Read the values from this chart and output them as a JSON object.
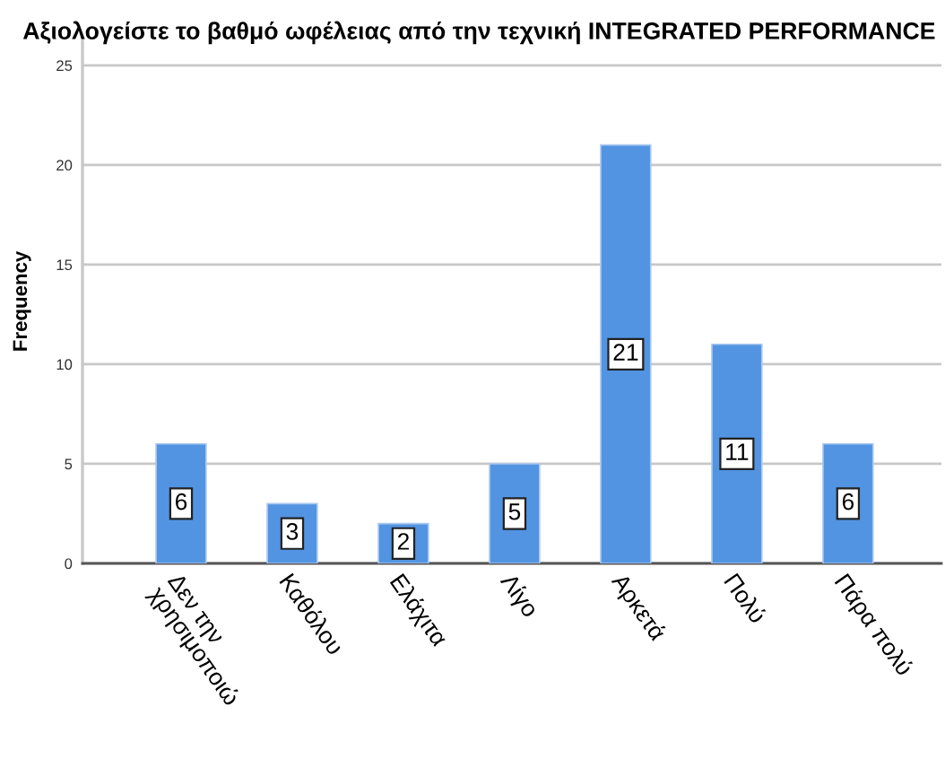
{
  "chart_data": {
    "type": "bar",
    "title": "Αξιολογείστε το βαθμό ωφέλειας από την τεχνική INTEGRATED PERFORMANCE",
    "ylabel": "Frequency",
    "categories": [
      "Δεν την\nχρησιμοποιώ",
      "Καθόλου",
      "Ελάχιτα",
      "Λίγο",
      "Αρκετά",
      "Πολύ",
      "Πάρα πολύ"
    ],
    "values": [
      6,
      3,
      2,
      5,
      21,
      11,
      6
    ],
    "color": "#5294e2",
    "ylim": [
      0,
      26.3
    ],
    "yticks": [
      0,
      5,
      10,
      15,
      20,
      25
    ],
    "grid": "y",
    "data_labels": true
  }
}
